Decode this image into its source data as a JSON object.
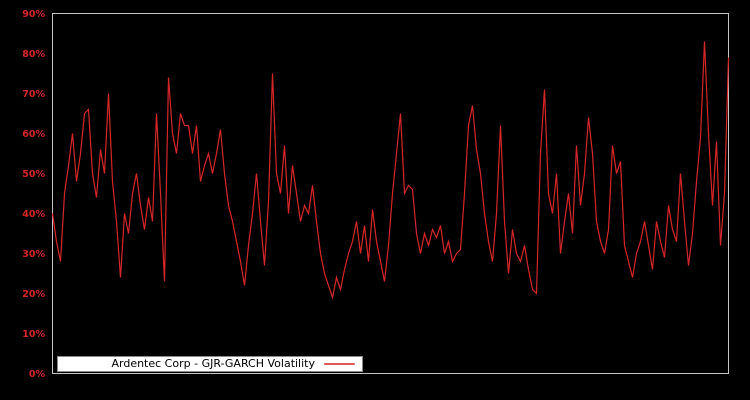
{
  "legend": {
    "label": "Ardentec Corp - GJR-GARCH Volatility"
  },
  "chart_data": {
    "type": "line",
    "title": "",
    "xlabel": "",
    "ylabel": "",
    "ylim": [
      0,
      90
    ],
    "y_ticks": [
      "0%",
      "10%",
      "20%",
      "30%",
      "40%",
      "50%",
      "60%",
      "70%",
      "80%",
      "90%"
    ],
    "x_axis_labels_visible": false,
    "grid": false,
    "legend_position": "lower-left",
    "background_color": "#000000",
    "axis_border_color": "#c4c4c4",
    "tick_label_color": "#d62728",
    "legend_sample_color": "#dd5a58",
    "series": [
      {
        "name": "Ardentec Corp - GJR-GARCH Volatility",
        "color": "#d62728",
        "unit": "%",
        "values": [
          40,
          33,
          28,
          45,
          52,
          60,
          48,
          55,
          65,
          66,
          50,
          44,
          56,
          50,
          70,
          48,
          38,
          24,
          40,
          35,
          45,
          50,
          42,
          36,
          44,
          38,
          65,
          45,
          23,
          74,
          60,
          55,
          65,
          62,
          62,
          55,
          62,
          48,
          52,
          55,
          50,
          55,
          61,
          50,
          42,
          38,
          33,
          28,
          22,
          32,
          40,
          50,
          38,
          27,
          43,
          75,
          50,
          45,
          57,
          40,
          52,
          45,
          38,
          42,
          40,
          47,
          38,
          30,
          25,
          22,
          19,
          24,
          21,
          26,
          30,
          33,
          38,
          30,
          37,
          28,
          41,
          33,
          28,
          23,
          32,
          45,
          55,
          65,
          45,
          47,
          46,
          35,
          30,
          35,
          32,
          36,
          34,
          37,
          30,
          33,
          28,
          30,
          31,
          45,
          62,
          67,
          56,
          50,
          40,
          33,
          28,
          40,
          62,
          38,
          25,
          36,
          30,
          28,
          32,
          26,
          21,
          20,
          55,
          71,
          45,
          40,
          50,
          30,
          38,
          45,
          35,
          57,
          42,
          50,
          64,
          55,
          38,
          33,
          30,
          36,
          57,
          50,
          53,
          32,
          28,
          24,
          30,
          33,
          38,
          32,
          26,
          38,
          33,
          29,
          42,
          36,
          33,
          50,
          38,
          27,
          35,
          48,
          59,
          83,
          60,
          42,
          58,
          32,
          45,
          79
        ]
      }
    ]
  }
}
